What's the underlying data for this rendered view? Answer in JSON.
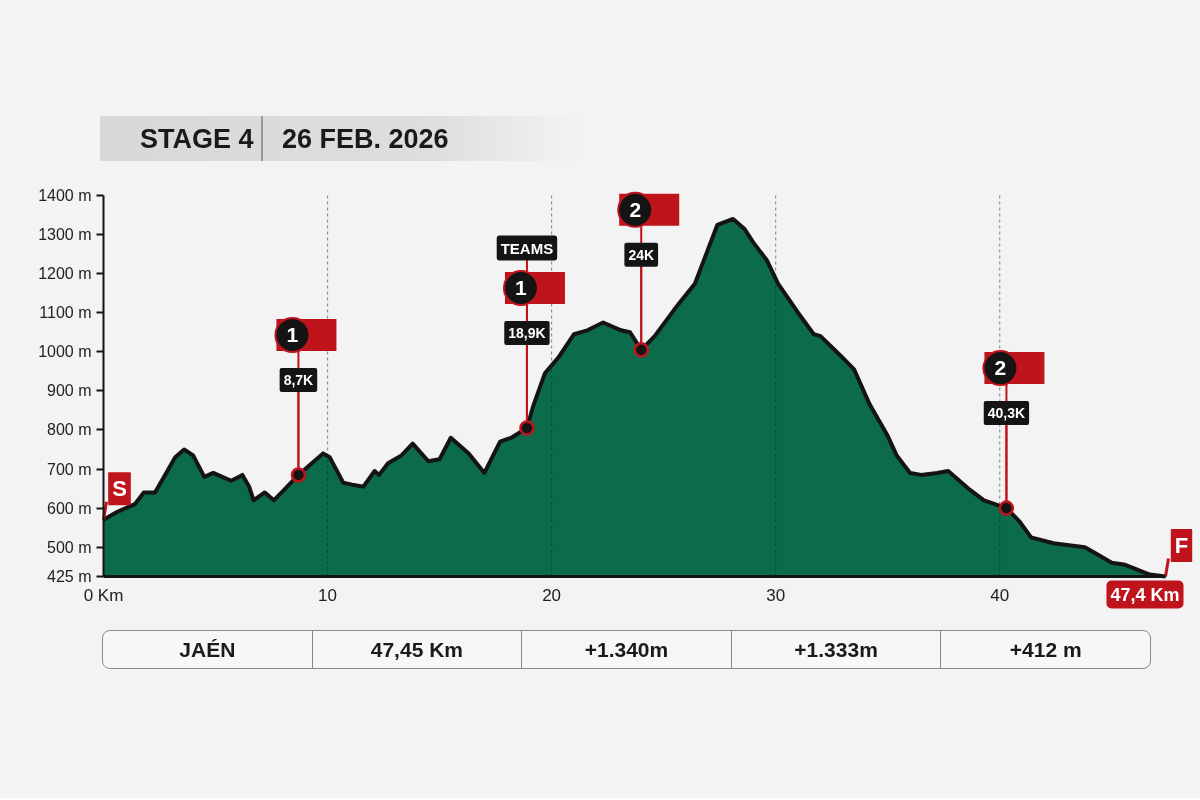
{
  "chart_data": {
    "type": "area",
    "title": "STAGE 4",
    "subtitle": "26 FEB. 2026",
    "color": "#0c6b4b",
    "x": [
      0,
      0.6,
      1.4,
      1.8,
      2.3,
      2.8,
      3.2,
      3.6,
      4.0,
      4.5,
      4.9,
      5.3,
      5.7,
      6.2,
      6.5,
      6.7,
      7.2,
      7.6,
      8.2,
      8.7,
      9.3,
      9.8,
      10.1,
      10.7,
      11.1,
      11.6,
      12.1,
      12.3,
      12.7,
      13.3,
      13.8,
      14.5,
      15.0,
      15.5,
      16.3,
      17.0,
      17.7,
      18.2,
      18.9,
      19.2,
      19.7,
      20.3,
      21.0,
      21.6,
      22.3,
      23.1,
      23.5,
      24.0,
      24.6,
      25.5,
      26.4,
      27.0,
      27.4,
      28.1,
      28.6,
      29.0,
      29.6,
      30.1,
      31.0,
      31.7,
      32.0,
      32.9,
      33.5,
      34.2,
      35.0,
      35.4,
      36.0,
      36.5,
      37.2,
      37.7,
      38.6,
      39.3,
      40.3,
      40.9,
      41.4,
      42.4,
      43.8,
      44.1,
      45.0,
      45.6,
      46.7,
      47.4
    ],
    "values": [
      570,
      590,
      610,
      640,
      640,
      690,
      730,
      750,
      735,
      680,
      690,
      680,
      670,
      685,
      655,
      620,
      640,
      620,
      655,
      685,
      715,
      740,
      730,
      665,
      660,
      655,
      695,
      685,
      715,
      735,
      765,
      720,
      725,
      780,
      740,
      690,
      770,
      780,
      805,
      865,
      945,
      985,
      1045,
      1055,
      1075,
      1055,
      1050,
      1005,
      1040,
      1110,
      1175,
      1265,
      1325,
      1340,
      1315,
      1280,
      1235,
      1175,
      1100,
      1045,
      1040,
      990,
      955,
      865,
      785,
      735,
      690,
      685,
      690,
      695,
      650,
      620,
      600,
      565,
      525,
      510,
      500,
      490,
      460,
      455,
      430,
      425
    ],
    "xlim": [
      0,
      47.4
    ],
    "ylim": [
      425,
      1400
    ],
    "xticks": [
      {
        "value": 0,
        "label": "0 Km"
      },
      10,
      20,
      30,
      40
    ],
    "yticks": [
      {
        "value": 425,
        "label": "425 m"
      },
      {
        "value": 500,
        "label": "500 m"
      },
      {
        "value": 600,
        "label": "600 m"
      },
      {
        "value": 700,
        "label": "700 m"
      },
      {
        "value": 800,
        "label": "800 m"
      },
      {
        "value": 900,
        "label": "900 m"
      },
      {
        "value": 1000,
        "label": "1000 m"
      },
      {
        "value": 1100,
        "label": "1100 m"
      },
      {
        "value": 1200,
        "label": "1200 m"
      },
      {
        "value": 1300,
        "label": "1300 m"
      },
      {
        "value": 1400,
        "label": "1400 m"
      }
    ],
    "grid": "x",
    "annotations": [
      {
        "text": "S",
        "x": 0,
        "y": 570
      },
      {
        "text": "1",
        "x": 8.7,
        "y": 685
      },
      {
        "text": "8,7K",
        "x": 8.7,
        "y": 685
      },
      {
        "text": "TEAMS",
        "x": 18.9,
        "y": 805
      },
      {
        "text": "1",
        "x": 18.9,
        "y": 805
      },
      {
        "text": "18,9K",
        "x": 18.9,
        "y": 805
      },
      {
        "text": "2",
        "x": 24.0,
        "y": 1005
      },
      {
        "text": "24K",
        "x": 24.0,
        "y": 1005
      },
      {
        "text": "2",
        "x": 40.3,
        "y": 600
      },
      {
        "text": "40,3K",
        "x": 40.3,
        "y": 600
      },
      {
        "text": "F",
        "x": 47.4,
        "y": 425
      },
      {
        "text": "47,4 Km",
        "x": 47.4,
        "y": 425
      },
      "JAÉN",
      "47,45 Km",
      "+1.340m",
      "+1.333m",
      "+412 m"
    ]
  }
}
